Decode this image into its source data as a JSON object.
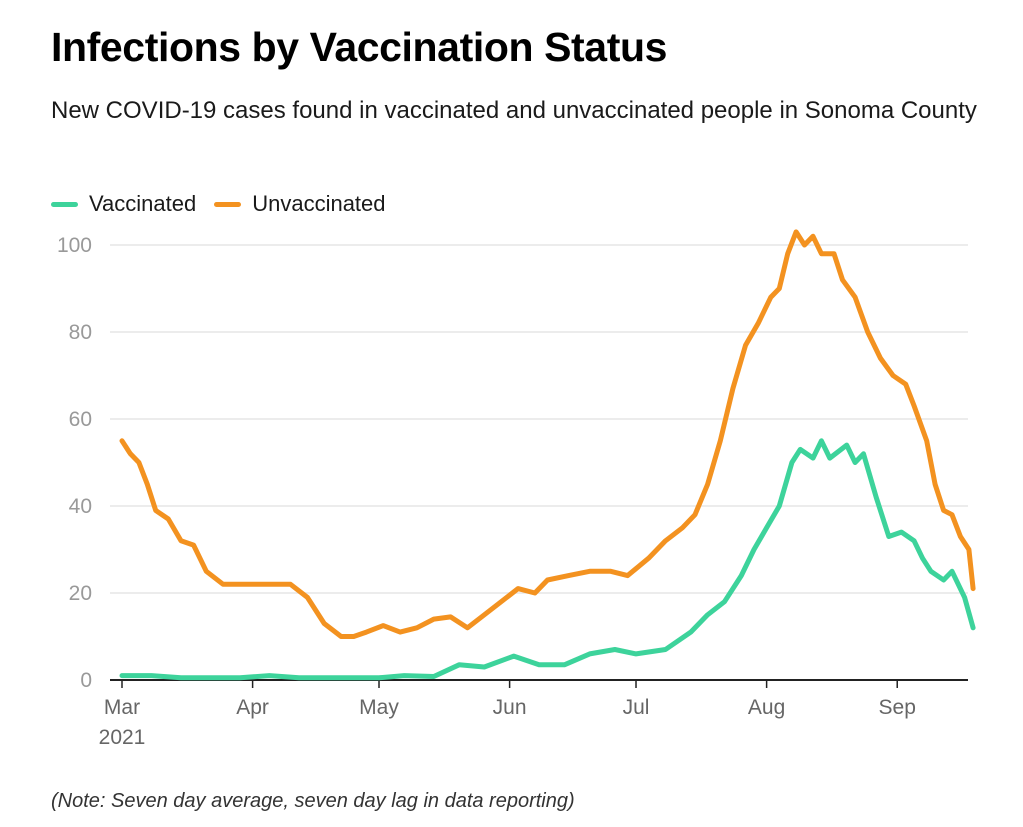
{
  "title": "Infections by Vaccination Status",
  "subtitle": "New COVID-19 cases found in vaccinated and unvaccinated people in Sonoma County",
  "note": "(Note: Seven day average, seven day lag in data reporting)",
  "colors": {
    "vaccinated": "#3dd39b",
    "unvaccinated": "#f39220",
    "grid": "#e6e6e6",
    "axis": "#222222"
  },
  "chart_data": {
    "type": "line",
    "title": "Infections by Vaccination Status",
    "subtitle": "New COVID-19 cases found in vaccinated and unvaccinated people in Sonoma County",
    "xlabel": "",
    "ylabel": "",
    "ylim": [
      0,
      100
    ],
    "yticks": [
      "0",
      "20",
      "40",
      "60",
      "80",
      "100"
    ],
    "xticks": [
      {
        "date": "2021-03-01",
        "label": "Mar",
        "sublabel": "2021"
      },
      {
        "date": "2021-04-01",
        "label": "Apr"
      },
      {
        "date": "2021-05-01",
        "label": "May"
      },
      {
        "date": "2021-06-01",
        "label": "Jun"
      },
      {
        "date": "2021-07-01",
        "label": "Jul"
      },
      {
        "date": "2021-08-01",
        "label": "Aug"
      },
      {
        "date": "2021-09-01",
        "label": "Sep"
      }
    ],
    "xrange": [
      "2021-03-01",
      "2021-09-14"
    ],
    "grid": true,
    "legend": "top-left",
    "series": [
      {
        "name": "Vaccinated",
        "color": "#3dd39b",
        "points": [
          [
            "2021-03-01",
            1
          ],
          [
            "2021-03-08",
            1
          ],
          [
            "2021-03-15",
            0.5
          ],
          [
            "2021-03-22",
            0.5
          ],
          [
            "2021-03-29",
            0.5
          ],
          [
            "2021-04-05",
            1
          ],
          [
            "2021-04-12",
            0.5
          ],
          [
            "2021-04-19",
            0.5
          ],
          [
            "2021-04-26",
            0.5
          ],
          [
            "2021-05-01",
            0.5
          ],
          [
            "2021-05-07",
            1
          ],
          [
            "2021-05-14",
            0.8
          ],
          [
            "2021-05-20",
            3.5
          ],
          [
            "2021-05-26",
            3
          ],
          [
            "2021-06-02",
            5.5
          ],
          [
            "2021-06-08",
            3.5
          ],
          [
            "2021-06-14",
            3.5
          ],
          [
            "2021-06-20",
            6
          ],
          [
            "2021-06-26",
            7
          ],
          [
            "2021-07-01",
            6
          ],
          [
            "2021-07-08",
            7
          ],
          [
            "2021-07-14",
            11
          ],
          [
            "2021-07-18",
            15
          ],
          [
            "2021-07-22",
            18
          ],
          [
            "2021-07-26",
            24
          ],
          [
            "2021-07-29",
            30
          ],
          [
            "2021-08-01",
            35
          ],
          [
            "2021-08-04",
            40
          ],
          [
            "2021-08-07",
            50
          ],
          [
            "2021-08-09",
            53
          ],
          [
            "2021-08-12",
            51
          ],
          [
            "2021-08-14",
            55
          ],
          [
            "2021-08-16",
            51
          ],
          [
            "2021-08-20",
            54
          ],
          [
            "2021-08-22",
            50
          ],
          [
            "2021-08-24",
            52
          ],
          [
            "2021-08-27",
            42
          ],
          [
            "2021-08-30",
            33
          ],
          [
            "2021-09-02",
            34
          ],
          [
            "2021-09-05",
            32
          ],
          [
            "2021-09-07",
            28
          ],
          [
            "2021-09-09",
            25
          ],
          [
            "2021-09-12",
            23
          ],
          [
            "2021-09-14",
            25
          ],
          [
            "2021-09-17",
            19
          ],
          [
            "2021-09-19",
            12
          ]
        ]
      },
      {
        "name": "Unvaccinated",
        "color": "#f39220",
        "points": [
          [
            "2021-03-01",
            55
          ],
          [
            "2021-03-03",
            52
          ],
          [
            "2021-03-05",
            50
          ],
          [
            "2021-03-07",
            45
          ],
          [
            "2021-03-09",
            39
          ],
          [
            "2021-03-12",
            37
          ],
          [
            "2021-03-15",
            32
          ],
          [
            "2021-03-18",
            31
          ],
          [
            "2021-03-21",
            25
          ],
          [
            "2021-03-25",
            22
          ],
          [
            "2021-03-28",
            22
          ],
          [
            "2021-04-01",
            22
          ],
          [
            "2021-04-05",
            22
          ],
          [
            "2021-04-10",
            22
          ],
          [
            "2021-04-14",
            19
          ],
          [
            "2021-04-18",
            13
          ],
          [
            "2021-04-22",
            10
          ],
          [
            "2021-04-25",
            10
          ],
          [
            "2021-04-28",
            11
          ],
          [
            "2021-05-02",
            12.5
          ],
          [
            "2021-05-06",
            11
          ],
          [
            "2021-05-10",
            12
          ],
          [
            "2021-05-14",
            14
          ],
          [
            "2021-05-18",
            14.5
          ],
          [
            "2021-05-22",
            12
          ],
          [
            "2021-05-26",
            15
          ],
          [
            "2021-05-30",
            18
          ],
          [
            "2021-06-03",
            21
          ],
          [
            "2021-06-07",
            20
          ],
          [
            "2021-06-10",
            23
          ],
          [
            "2021-06-15",
            24
          ],
          [
            "2021-06-20",
            25
          ],
          [
            "2021-06-25",
            25
          ],
          [
            "2021-06-29",
            24
          ],
          [
            "2021-07-04",
            28
          ],
          [
            "2021-07-08",
            32
          ],
          [
            "2021-07-12",
            35
          ],
          [
            "2021-07-15",
            38
          ],
          [
            "2021-07-18",
            45
          ],
          [
            "2021-07-21",
            55
          ],
          [
            "2021-07-24",
            67
          ],
          [
            "2021-07-27",
            77
          ],
          [
            "2021-07-30",
            82
          ],
          [
            "2021-08-02",
            88
          ],
          [
            "2021-08-04",
            90
          ],
          [
            "2021-08-06",
            98
          ],
          [
            "2021-08-08",
            103
          ],
          [
            "2021-08-10",
            100
          ],
          [
            "2021-08-12",
            102
          ],
          [
            "2021-08-14",
            98
          ],
          [
            "2021-08-17",
            98
          ],
          [
            "2021-08-19",
            92
          ],
          [
            "2021-08-22",
            88
          ],
          [
            "2021-08-25",
            80
          ],
          [
            "2021-08-28",
            74
          ],
          [
            "2021-08-31",
            70
          ],
          [
            "2021-09-03",
            68
          ],
          [
            "2021-09-05",
            63
          ],
          [
            "2021-09-08",
            55
          ],
          [
            "2021-09-10",
            45
          ],
          [
            "2021-09-12",
            39
          ],
          [
            "2021-09-14",
            38
          ],
          [
            "2021-09-16",
            33
          ],
          [
            "2021-09-18",
            30
          ],
          [
            "2021-09-19",
            21
          ]
        ]
      }
    ]
  }
}
